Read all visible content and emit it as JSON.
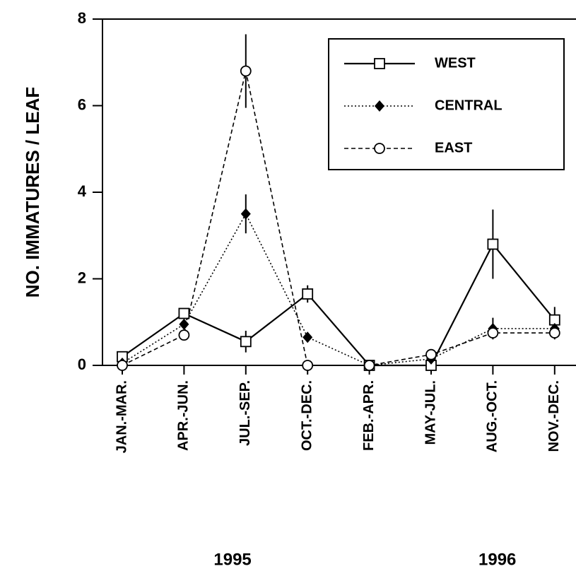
{
  "chart_data": {
    "type": "line",
    "y_label": "NO.  IMMATURES  /  LEAF",
    "categories": [
      "JAN.-MAR.",
      "APR.-JUN.",
      "JUL.-SEP.",
      "OCT.-DEC.",
      "FEB.-APR.",
      "MAY-JUL.",
      "AUG.-OCT.",
      "NOV.-DEC."
    ],
    "groups": [
      {
        "label": "1995",
        "count": 4
      },
      {
        "label": "1996",
        "count": 4
      }
    ],
    "series": [
      {
        "name": "WEST",
        "color": "#000000",
        "line_style": "solid",
        "marker": "open-square",
        "values": [
          0.2,
          1.2,
          0.55,
          1.65,
          0,
          0,
          2.8,
          1.05
        ],
        "errors": [
          null,
          null,
          0.25,
          0.2,
          null,
          null,
          0.8,
          0.3
        ]
      },
      {
        "name": "CENTRAL",
        "color": "#000000",
        "line_style": "dotted",
        "marker": "filled-diamond",
        "values": [
          0.05,
          0.95,
          3.5,
          0.65,
          0,
          0.15,
          0.85,
          0.85
        ],
        "errors": [
          null,
          null,
          0.45,
          null,
          null,
          null,
          0.25,
          null
        ]
      },
      {
        "name": "EAST",
        "color": "#000000",
        "line_style": "dashed",
        "marker": "open-circle",
        "values": [
          0,
          0.7,
          6.8,
          0,
          0,
          0.25,
          0.75,
          0.75
        ],
        "errors": [
          null,
          null,
          0.85,
          null,
          null,
          null,
          null,
          0.15
        ]
      }
    ],
    "ylim": [
      0,
      8
    ],
    "yticks": [
      0,
      2,
      4,
      6,
      8
    ],
    "legend": "top-right"
  }
}
